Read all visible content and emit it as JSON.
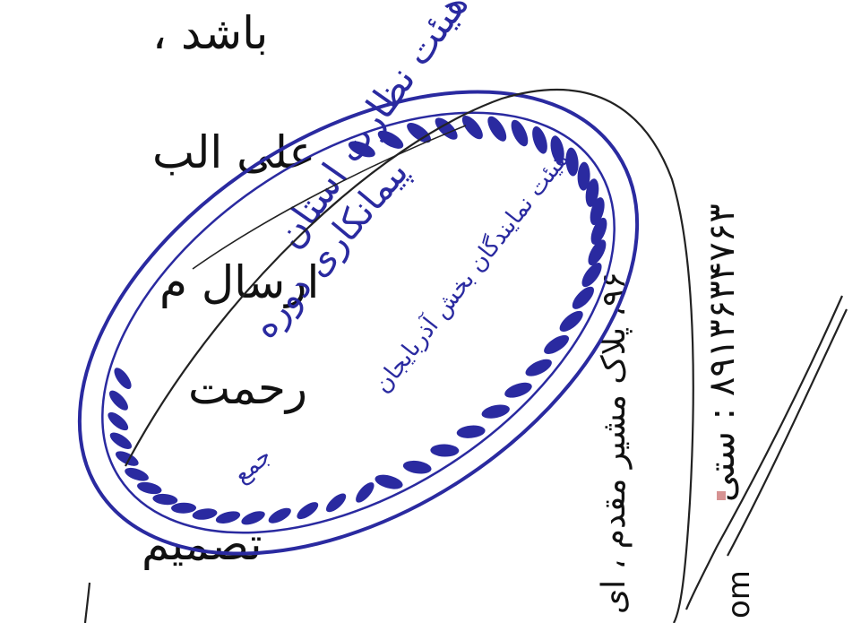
{
  "document": {
    "lines": [
      "باشد ، ",
      "علی الب",
      "ارسال م",
      "رحمت",
      "تصمیم"
    ],
    "vertical_text": {
      "address": "۹۶، پلاک مشیر مقدم ، ای",
      "phone": "۸۹۱۳۶۳۴۷۶۳ : ستی",
      "url_fragment": "om"
    }
  },
  "stamp": {
    "color": "#2a2aa0",
    "lines": [
      "هیئت نظارت استان",
      "پیمانکاری دوره",
      "هیئت نمایندگان بخش آذربایجان",
      "جمع"
    ]
  }
}
